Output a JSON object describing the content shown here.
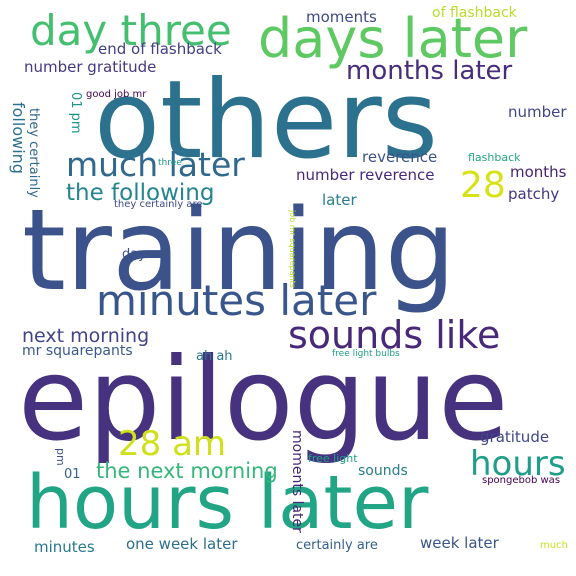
{
  "words": [
    {
      "text": "others",
      "color": "#2c728e"
    },
    {
      "text": "training",
      "color": "#3b528b"
    },
    {
      "text": "epilogue",
      "color": "#46327e"
    },
    {
      "text": "hours later",
      "color": "#21a585"
    },
    {
      "text": "days later",
      "color": "#5ec962"
    },
    {
      "text": "day three",
      "color": "#44bf70"
    },
    {
      "text": "minutes later",
      "color": "#39568c"
    },
    {
      "text": "sounds like",
      "color": "#482878"
    },
    {
      "text": "much later",
      "color": "#31688e"
    },
    {
      "text": "months later",
      "color": "#472d7b"
    },
    {
      "text": "28 am",
      "color": "#d0e11c"
    },
    {
      "text": "hours",
      "color": "#1f9e89"
    },
    {
      "text": "the following",
      "color": "#25848e"
    },
    {
      "text": "28",
      "color": "#d8e219"
    },
    {
      "text": "next morning",
      "color": "#414487"
    },
    {
      "text": "the next morning",
      "color": "#35b779"
    },
    {
      "text": "moments",
      "color": "#3e4989"
    },
    {
      "text": "of flashback",
      "color": "#b5de2b"
    },
    {
      "text": "end of flashback",
      "color": "#424086"
    },
    {
      "text": "number gratitude",
      "color": "#443983"
    },
    {
      "text": "number",
      "color": "#404688"
    },
    {
      "text": "reverence",
      "color": "#3b528b"
    },
    {
      "text": "flashback",
      "color": "#22a884"
    },
    {
      "text": "number reverence",
      "color": "#472a7a"
    },
    {
      "text": "months",
      "color": "#482475"
    },
    {
      "text": "patchy",
      "color": "#453781"
    },
    {
      "text": "later",
      "color": "#277f8e"
    },
    {
      "text": "days",
      "color": "#3b528b"
    },
    {
      "text": "ah ah",
      "color": "#2a788e"
    },
    {
      "text": "mr squarepants",
      "color": "#38598c"
    },
    {
      "text": "gratitude",
      "color": "#3f4788"
    },
    {
      "text": "sounds",
      "color": "#287d8e"
    },
    {
      "text": "week later",
      "color": "#3a548c"
    },
    {
      "text": "one week later",
      "color": "#2e6e8e"
    },
    {
      "text": "certainly are",
      "color": "#34608d"
    },
    {
      "text": "minutes",
      "color": "#2a788e"
    },
    {
      "text": "01",
      "color": "#355f8d"
    },
    {
      "text": "good job mr",
      "color": "#440154"
    },
    {
      "text": "three",
      "color": "#1f9a8a"
    },
    {
      "text": "they certainly are",
      "color": "#3e4a89"
    },
    {
      "text": "free light bulbs",
      "color": "#1fa088"
    },
    {
      "text": "free light",
      "color": "#1fa088"
    },
    {
      "text": "spongebob was",
      "color": "#440154"
    },
    {
      "text": "much",
      "color": "#c8e020"
    },
    {
      "text": "following",
      "color": "#2c728e"
    },
    {
      "text": "they certainly",
      "color": "#31688e"
    },
    {
      "text": "01 pm",
      "color": "#1f968b"
    },
    {
      "text": "pm",
      "color": "#3b528b"
    },
    {
      "text": "moments later",
      "color": "#482878"
    },
    {
      "text": "job mr squarepants",
      "color": "#bddf26"
    }
  ]
}
